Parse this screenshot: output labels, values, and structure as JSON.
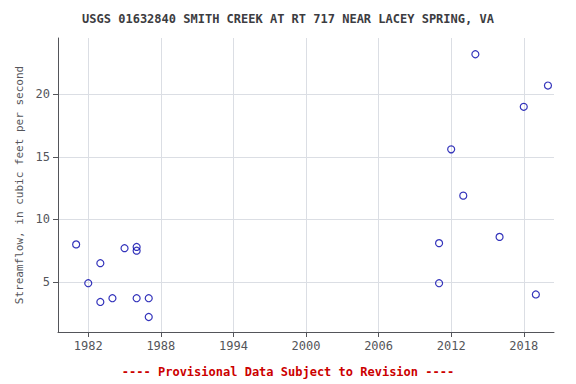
{
  "chart_data": {
    "type": "scatter",
    "title": "USGS 01632840 SMITH CREEK AT RT 717 NEAR LACEY SPRING, VA",
    "ylabel": "Streamflow, in cubic feet per second",
    "x": [
      1981,
      1982,
      1983,
      1983,
      1984,
      1985,
      1986,
      1986,
      1986,
      1987,
      1987,
      2011,
      2011,
      2012,
      2013,
      2014,
      2016,
      2018,
      2019,
      2020
    ],
    "values": [
      8.0,
      4.9,
      6.5,
      3.4,
      3.7,
      7.7,
      7.8,
      7.5,
      3.7,
      2.2,
      3.7,
      4.9,
      8.1,
      15.6,
      11.9,
      23.2,
      8.6,
      19.0,
      4.0,
      20.7
    ],
    "color": "#0000AA",
    "marker": "open circle",
    "xlim": [
      1979.5,
      2020.5
    ],
    "ylim": [
      1.0,
      24.5
    ],
    "xticks": [
      1982,
      1988,
      1994,
      2000,
      2006,
      2012,
      2018
    ],
    "yticks": [
      5,
      10,
      15,
      20
    ],
    "grid": true,
    "annotations": [
      {
        "text": "---- Provisional Data Subject to Revision ----",
        "color": "#cc0000"
      }
    ]
  }
}
